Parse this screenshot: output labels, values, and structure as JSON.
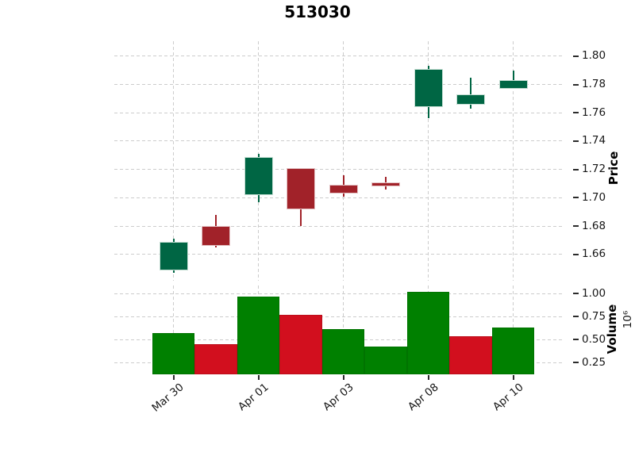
{
  "title": "513030",
  "axes": {
    "price": {
      "label": "Price"
    },
    "volume": {
      "label": "Volume",
      "offset_text": "10⁶"
    }
  },
  "colors": {
    "candle_up": "#006644",
    "candle_down": "#a12229",
    "candle_up_edge": "#c3ddd2",
    "candle_down_edge": "#e2c0c2",
    "volume_up": "#008000",
    "volume_down": "#d20f1e",
    "grid": "#cccccc",
    "text": "#161616"
  },
  "chart_data": {
    "type": "candlestick",
    "title": "513030",
    "x_tick_labels": [
      "Mar 30",
      "Apr 01",
      "Apr 03",
      "Apr 08",
      "Apr 10"
    ],
    "x_tick_bar_indices": [
      0,
      2,
      4,
      6,
      8
    ],
    "price_axis": {
      "label": "Price",
      "ticks": [
        1.8,
        1.78,
        1.76,
        1.74,
        1.72,
        1.7,
        1.68,
        1.66
      ],
      "visible_range": [
        1.6415,
        1.8105
      ],
      "side": "right"
    },
    "volume_axis": {
      "label": "Volume",
      "unit_multiplier": "1e6",
      "ticks": [
        1.0,
        0.75,
        0.5,
        0.25
      ],
      "visible_range": [
        0.125,
        1.09
      ],
      "side": "right"
    },
    "grid": "dashed",
    "candles": [
      {
        "open": 1.649,
        "high": 1.671,
        "low": 1.647,
        "close": 1.669,
        "volume_m": 0.57,
        "direction": "up",
        "volume_color": "up"
      },
      {
        "open": 1.68,
        "high": 1.688,
        "low": 1.665,
        "close": 1.666,
        "volume_m": 0.45,
        "direction": "down",
        "volume_color": "down"
      },
      {
        "open": 1.702,
        "high": 1.731,
        "low": 1.697,
        "close": 1.729,
        "volume_m": 0.97,
        "direction": "up",
        "volume_color": "up"
      },
      {
        "open": 1.721,
        "high": 1.721,
        "low": 1.68,
        "close": 1.692,
        "volume_m": 0.77,
        "direction": "down",
        "volume_color": "down"
      },
      {
        "open": 1.709,
        "high": 1.716,
        "low": 1.701,
        "close": 1.703,
        "volume_m": 0.62,
        "direction": "down",
        "volume_color": "up"
      },
      {
        "open": 1.711,
        "high": 1.715,
        "low": 1.706,
        "close": 1.708,
        "volume_m": 0.43,
        "direction": "down",
        "volume_color": "up"
      },
      {
        "open": 1.764,
        "high": 1.793,
        "low": 1.756,
        "close": 1.791,
        "volume_m": 1.02,
        "direction": "up",
        "volume_color": "up"
      },
      {
        "open": 1.766,
        "high": 1.785,
        "low": 1.763,
        "close": 1.773,
        "volume_m": 0.54,
        "direction": "up",
        "volume_color": "down"
      },
      {
        "open": 1.777,
        "high": 1.79,
        "low": 1.777,
        "close": 1.783,
        "volume_m": 0.63,
        "direction": "up",
        "volume_color": "up"
      }
    ]
  }
}
